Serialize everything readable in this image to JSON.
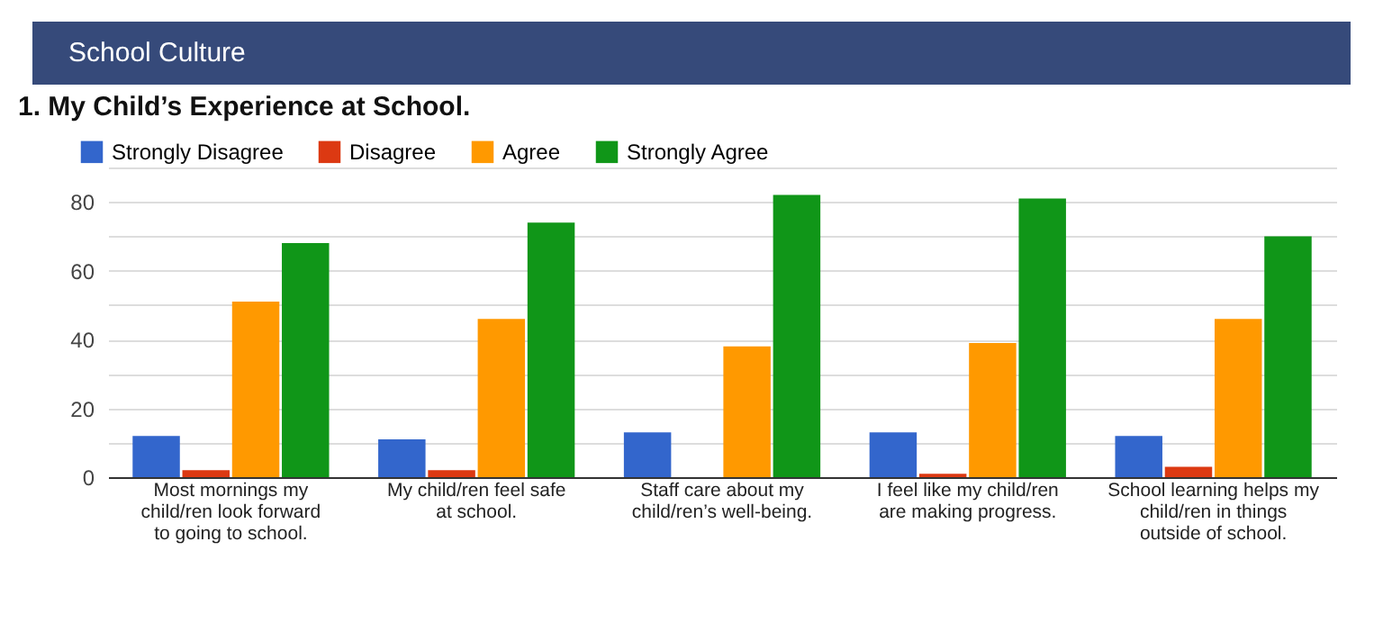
{
  "chart_data": {
    "type": "bar",
    "title": "School Culture",
    "subtitle": "1. My Child’s Experience at School.",
    "categories": [
      "Most mornings my child/ren look forward to going to school.",
      "My child/ren feel safe at school.",
      "Staff care about my child/ren’s well-being.",
      "I feel like my child/ren are making progress.",
      "School learning helps my child/ren in things outside of school."
    ],
    "series": [
      {
        "name": "Strongly Disagree",
        "color": "#3366cc",
        "values": [
          12,
          11,
          13,
          13,
          12
        ]
      },
      {
        "name": "Disagree",
        "color": "#dc3912",
        "values": [
          2,
          2,
          0,
          1,
          3
        ]
      },
      {
        "name": "Agree",
        "color": "#ff9900",
        "values": [
          51,
          46,
          38,
          39,
          46
        ]
      },
      {
        "name": "Strongly Agree",
        "color": "#109618",
        "values": [
          68,
          74,
          82,
          81,
          70
        ]
      }
    ],
    "ylim": [
      0,
      90
    ],
    "yticks": [
      0,
      {
        "value": 10,
        "label": null
      },
      20,
      {
        "value": 30,
        "label": null
      },
      40,
      {
        "value": 50,
        "label": null
      },
      60,
      {
        "value": 70,
        "label": null
      },
      80,
      {
        "value": 90,
        "label": null
      }
    ],
    "grid": true,
    "legend": "top left"
  }
}
